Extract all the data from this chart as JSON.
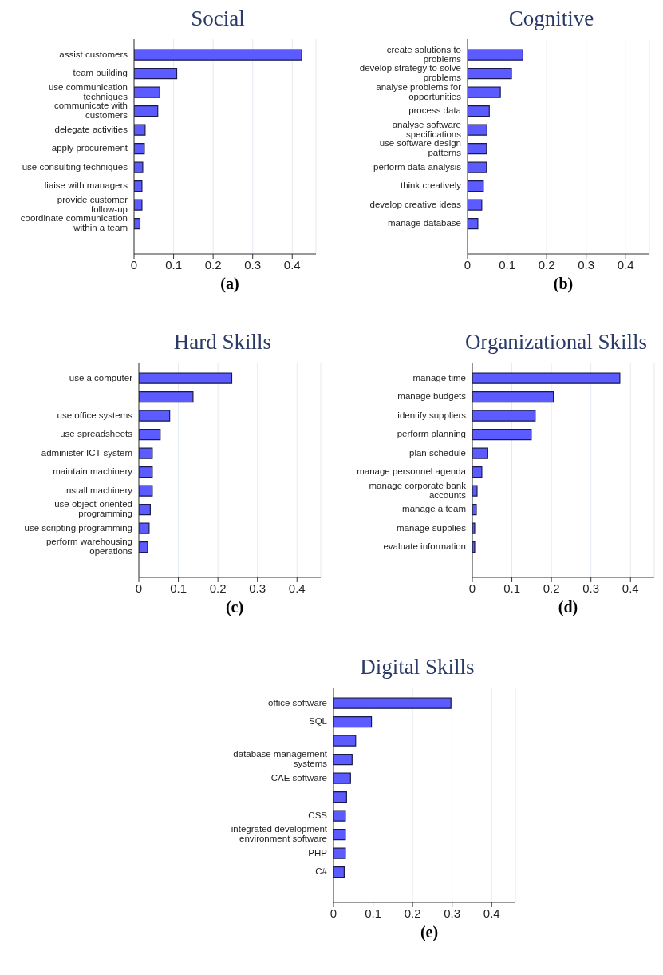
{
  "chart_data": [
    {
      "type": "bar",
      "orientation": "horizontal",
      "title": "Social",
      "xlabel": "(a)",
      "categories": [
        "assist customers",
        "team building",
        "use communication techniques",
        "communicate with customers",
        "delegate activities",
        "apply procurement",
        "use consulting techniques",
        "liaise with managers",
        "provide customer follow-up",
        "coordinate communication within a team"
      ],
      "values": [
        0.424,
        0.108,
        0.065,
        0.06,
        0.028,
        0.026,
        0.022,
        0.02,
        0.02,
        0.015
      ],
      "color": "#5b5bff",
      "xlim": [
        0,
        0.46
      ],
      "xticks": [
        0,
        0.1,
        0.2,
        0.3,
        0.4
      ],
      "grid": "x"
    },
    {
      "type": "bar",
      "orientation": "horizontal",
      "title": "Cognitive",
      "xlabel": "(b)",
      "categories": [
        "create solutions to problems",
        "develop strategy to solve problems",
        "analyse problems for opportunities",
        "process data",
        "analyse software specifications",
        "use software design patterns",
        "perform data analysis",
        "think creatively",
        "develop creative ideas",
        "manage database"
      ],
      "values": [
        0.14,
        0.111,
        0.083,
        0.055,
        0.049,
        0.048,
        0.048,
        0.04,
        0.036,
        0.026
      ],
      "color": "#5b5bff",
      "xlim": [
        0,
        0.46
      ],
      "xticks": [
        0,
        0.1,
        0.2,
        0.3,
        0.4
      ],
      "grid": "x"
    },
    {
      "type": "bar",
      "orientation": "horizontal",
      "title": "Hard Skills",
      "xlabel": "(c)",
      "categories": [
        "use a computer",
        null,
        "use office systems",
        "use spreadsheets",
        "administer ICT system",
        "maintain machinery",
        "install machinery",
        "use object-oriented programming",
        "use scripting programming",
        "perform warehousing operations"
      ],
      "values": [
        0.235,
        0.137,
        0.078,
        0.054,
        0.034,
        0.034,
        0.034,
        0.029,
        0.026,
        0.022
      ],
      "color": "#5b5bff",
      "xlim": [
        0,
        0.46
      ],
      "xticks": [
        0,
        0.1,
        0.2,
        0.3,
        0.4
      ],
      "grid": "x"
    },
    {
      "type": "bar",
      "orientation": "horizontal",
      "title": "Organizational Skills",
      "xlabel": "(d)",
      "categories": [
        "manage time",
        "manage budgets",
        "identify suppliers",
        "perform planning",
        "plan schedule",
        "manage personnel agenda",
        "manage corporate bank accounts",
        "manage a team",
        "manage supplies",
        "evaluate information"
      ],
      "values": [
        0.373,
        0.205,
        0.159,
        0.149,
        0.039,
        0.024,
        0.012,
        0.01,
        0.006,
        0.006
      ],
      "color": "#5b5bff",
      "xlim": [
        0,
        0.46
      ],
      "xticks": [
        0,
        0.1,
        0.2,
        0.3,
        0.4
      ],
      "grid": "x"
    },
    {
      "type": "bar",
      "orientation": "horizontal",
      "title": "Digital Skills",
      "xlabel": "(e)",
      "categories": [
        "office software",
        "SQL",
        null,
        "database management systems",
        "CAE software",
        null,
        "CSS",
        "integrated development environment software",
        "PHP",
        "C#"
      ],
      "values": [
        0.297,
        0.096,
        0.056,
        0.047,
        0.043,
        0.033,
        0.03,
        0.03,
        0.03,
        0.027
      ],
      "color": "#5b5bff",
      "xlim": [
        0,
        0.46
      ],
      "xticks": [
        0,
        0.1,
        0.2,
        0.3,
        0.4
      ],
      "grid": "x"
    }
  ]
}
